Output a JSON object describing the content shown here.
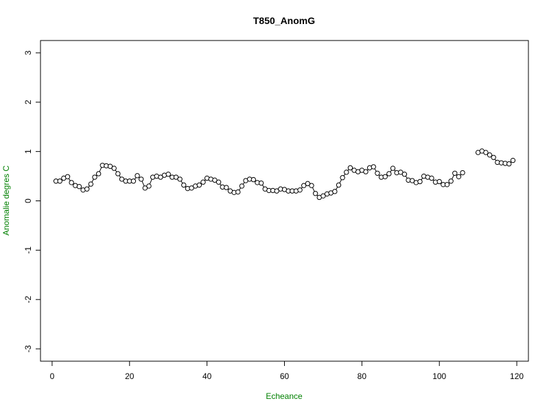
{
  "chart_data": {
    "type": "line",
    "title": "T850_AnomG",
    "xlabel": "Echeance",
    "ylabel": "Anomalie degres C",
    "xlim": [
      -3,
      123
    ],
    "ylim": [
      -3.25,
      3.25
    ],
    "x_ticks": [
      0,
      20,
      40,
      60,
      80,
      100,
      120
    ],
    "x_tick_labels": [
      "0",
      "20",
      "40",
      "60",
      "80",
      "100",
      "120"
    ],
    "y_ticks": [
      -3,
      -2,
      -1,
      0,
      1,
      2,
      3
    ],
    "y_tick_labels": [
      "-3",
      "-2",
      "-1",
      "0",
      "1",
      "2",
      "3"
    ],
    "grid": false,
    "legend": "none",
    "colors": {
      "line": "#000000",
      "axis_labels": "#008000",
      "frame": "#000000"
    },
    "series": [
      {
        "marker": "open-circle",
        "points": [
          [
            1,
            0.4
          ],
          [
            2,
            0.4
          ],
          [
            3,
            0.46
          ],
          [
            4,
            0.49
          ],
          [
            5,
            0.37
          ],
          [
            6,
            0.31
          ],
          [
            7,
            0.29
          ],
          [
            8,
            0.22
          ],
          [
            9,
            0.24
          ],
          [
            10,
            0.34
          ],
          [
            11,
            0.48
          ],
          [
            12,
            0.55
          ],
          [
            13,
            0.72
          ],
          [
            14,
            0.71
          ],
          [
            15,
            0.7
          ],
          [
            16,
            0.66
          ],
          [
            17,
            0.55
          ],
          [
            18,
            0.44
          ],
          [
            19,
            0.4
          ],
          [
            20,
            0.4
          ],
          [
            21,
            0.4
          ],
          [
            22,
            0.51
          ],
          [
            23,
            0.44
          ],
          [
            24,
            0.26
          ],
          [
            25,
            0.3
          ],
          [
            26,
            0.48
          ],
          [
            27,
            0.5
          ],
          [
            28,
            0.48
          ],
          [
            29,
            0.52
          ],
          [
            30,
            0.54
          ],
          [
            31,
            0.48
          ],
          [
            32,
            0.48
          ],
          [
            33,
            0.44
          ],
          [
            34,
            0.32
          ],
          [
            35,
            0.25
          ],
          [
            36,
            0.26
          ],
          [
            37,
            0.3
          ],
          [
            38,
            0.32
          ],
          [
            39,
            0.38
          ],
          [
            40,
            0.46
          ],
          [
            41,
            0.44
          ],
          [
            42,
            0.42
          ],
          [
            43,
            0.38
          ],
          [
            44,
            0.28
          ],
          [
            45,
            0.27
          ],
          [
            46,
            0.2
          ],
          [
            47,
            0.17
          ],
          [
            48,
            0.18
          ],
          [
            49,
            0.3
          ],
          [
            50,
            0.41
          ],
          [
            51,
            0.44
          ],
          [
            52,
            0.43
          ],
          [
            53,
            0.37
          ],
          [
            54,
            0.36
          ],
          [
            55,
            0.24
          ],
          [
            56,
            0.21
          ],
          [
            57,
            0.21
          ],
          [
            58,
            0.2
          ],
          [
            59,
            0.24
          ],
          [
            60,
            0.23
          ],
          [
            61,
            0.2
          ],
          [
            62,
            0.2
          ],
          [
            63,
            0.2
          ],
          [
            64,
            0.22
          ],
          [
            65,
            0.31
          ],
          [
            66,
            0.35
          ],
          [
            67,
            0.31
          ],
          [
            68,
            0.15
          ],
          [
            69,
            0.07
          ],
          [
            70,
            0.1
          ],
          [
            71,
            0.14
          ],
          [
            72,
            0.16
          ],
          [
            73,
            0.19
          ],
          [
            74,
            0.32
          ],
          [
            75,
            0.47
          ],
          [
            76,
            0.58
          ],
          [
            77,
            0.67
          ],
          [
            78,
            0.62
          ],
          [
            79,
            0.59
          ],
          [
            80,
            0.62
          ],
          [
            81,
            0.59
          ],
          [
            82,
            0.67
          ],
          [
            83,
            0.69
          ],
          [
            84,
            0.56
          ],
          [
            85,
            0.48
          ],
          [
            86,
            0.49
          ],
          [
            87,
            0.55
          ],
          [
            88,
            0.66
          ],
          [
            89,
            0.57
          ],
          [
            90,
            0.58
          ],
          [
            91,
            0.54
          ],
          [
            92,
            0.42
          ],
          [
            93,
            0.41
          ],
          [
            94,
            0.37
          ],
          [
            95,
            0.39
          ],
          [
            96,
            0.5
          ],
          [
            97,
            0.48
          ],
          [
            98,
            0.46
          ],
          [
            99,
            0.38
          ],
          [
            100,
            0.39
          ],
          [
            101,
            0.33
          ],
          [
            102,
            0.33
          ],
          [
            103,
            0.4
          ],
          [
            104,
            0.56
          ],
          [
            105,
            0.49
          ],
          [
            106,
            0.57
          ]
        ]
      },
      {
        "marker": "open-circle",
        "points": [
          [
            110,
            0.98
          ],
          [
            111,
            1.01
          ],
          [
            112,
            0.98
          ],
          [
            113,
            0.93
          ],
          [
            114,
            0.88
          ],
          [
            115,
            0.78
          ],
          [
            116,
            0.77
          ],
          [
            117,
            0.76
          ],
          [
            118,
            0.75
          ],
          [
            119,
            0.82
          ]
        ]
      }
    ]
  }
}
